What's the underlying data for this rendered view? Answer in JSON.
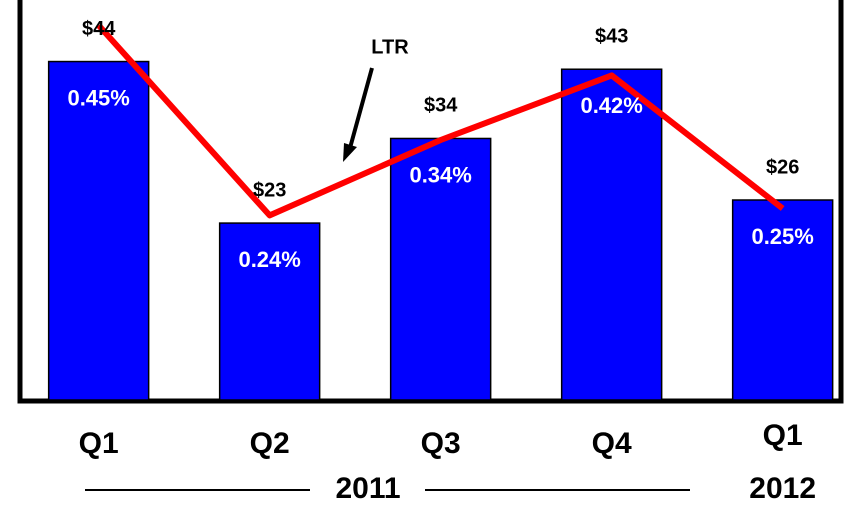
{
  "chart_data": {
    "type": "bar",
    "categories": [
      "Q1",
      "Q2",
      "Q3",
      "Q4",
      "Q1"
    ],
    "groups": [
      {
        "label": "2011",
        "span": [
          0,
          3
        ]
      },
      {
        "label": "2012",
        "span": [
          4,
          4
        ]
      }
    ],
    "ylim": [
      0,
      52
    ],
    "series": [
      {
        "type": "bar",
        "color": "#0000ff",
        "values": [
          44,
          23,
          34,
          43,
          26
        ],
        "value_labels": [
          "$44",
          "$23",
          "$34",
          "$43",
          "$26"
        ]
      },
      {
        "type": "line",
        "name": "LTR",
        "color": "#ff0000",
        "values": [
          48.7,
          24,
          33.8,
          42.2,
          24.9
        ]
      },
      {
        "type": "label",
        "values": [
          0.45,
          0.24,
          0.34,
          0.42,
          0.25
        ],
        "value_labels": [
          "0.45%",
          "0.24%",
          "0.34%",
          "0.42%",
          "0.25%"
        ]
      }
    ]
  }
}
